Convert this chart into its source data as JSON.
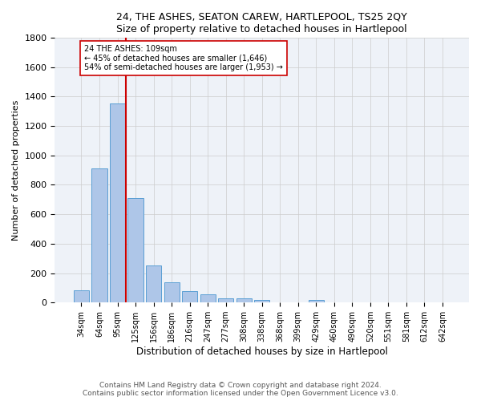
{
  "title": "24, THE ASHES, SEATON CAREW, HARTLEPOOL, TS25 2QY",
  "subtitle": "Size of property relative to detached houses in Hartlepool",
  "xlabel": "Distribution of detached houses by size in Hartlepool",
  "ylabel": "Number of detached properties",
  "categories": [
    "34sqm",
    "64sqm",
    "95sqm",
    "125sqm",
    "156sqm",
    "186sqm",
    "216sqm",
    "247sqm",
    "277sqm",
    "308sqm",
    "338sqm",
    "368sqm",
    "399sqm",
    "429sqm",
    "460sqm",
    "490sqm",
    "520sqm",
    "551sqm",
    "581sqm",
    "612sqm",
    "642sqm"
  ],
  "values": [
    82,
    910,
    1355,
    710,
    250,
    135,
    80,
    55,
    30,
    30,
    20,
    0,
    0,
    20,
    0,
    0,
    0,
    0,
    0,
    0,
    0
  ],
  "bar_color": "#aec6e8",
  "bar_edge_color": "#5a9fd4",
  "vline_color": "#cc0000",
  "annotation_text": "24 THE ASHES: 109sqm\n← 45% of detached houses are smaller (1,646)\n54% of semi-detached houses are larger (1,953) →",
  "annotation_box_color": "#ffffff",
  "annotation_box_edge": "#cc0000",
  "ylim": [
    0,
    1800
  ],
  "yticks": [
    0,
    200,
    400,
    600,
    800,
    1000,
    1200,
    1400,
    1600,
    1800
  ],
  "footer_text": "Contains HM Land Registry data © Crown copyright and database right 2024.\nContains public sector information licensed under the Open Government Licence v3.0.",
  "bg_color": "#ffffff",
  "grid_color": "#cccccc",
  "ax_bg_color": "#eef2f8"
}
